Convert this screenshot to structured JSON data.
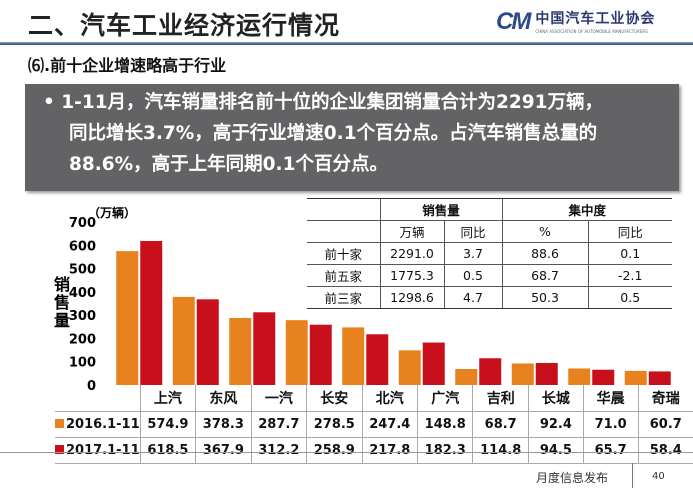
{
  "slide": {
    "title": "二、汽车工业经济运行情况",
    "logo": {
      "mark": "CM",
      "cn": "中国汽车工业协会",
      "en": "CHINA ASSOCIATION OF AUTOMOBILE MANUFACTURERS"
    },
    "subtitle": "⑹.前十企业增速略高于行业",
    "bullet_line1": "• 1-11月，汽车销量排名前十位的企业集团销量合计为2291万辆，",
    "bullet_line2": "同比增长3.7%，高于行业增速0.1个百分点。占汽车销售总量的",
    "bullet_line3": "88.6%，高于上年同期0.1个百分点。",
    "footer": "月度信息发布",
    "page": "40"
  },
  "summary_table": {
    "group_headers": [
      "销售量",
      "集中度"
    ],
    "sub_headers": [
      "万辆",
      "同比",
      "%",
      "同比"
    ],
    "rows": [
      {
        "label": "前十家",
        "values": [
          "2291.0",
          "3.7",
          "88.6",
          "0.1"
        ]
      },
      {
        "label": "前五家",
        "values": [
          "1775.3",
          "0.5",
          "68.7",
          "-2.1"
        ]
      },
      {
        "label": "前三家",
        "values": [
          "1298.6",
          "4.7",
          "50.3",
          "0.5"
        ]
      }
    ]
  },
  "chart_data": {
    "type": "bar",
    "unit_label": "（万辆）",
    "ylabel": "销售量",
    "ylim": [
      0,
      700
    ],
    "yticks": [
      "0",
      "100",
      "200",
      "300",
      "400",
      "500",
      "600",
      "700"
    ],
    "categories": [
      "上汽",
      "东风",
      "一汽",
      "长安",
      "北汽",
      "广汽",
      "吉利",
      "长城",
      "华晨",
      "奇瑞"
    ],
    "series": [
      {
        "name": "2016.1-11",
        "color": "#e8821e",
        "values": [
          574.9,
          378.3,
          287.7,
          278.5,
          247.4,
          148.8,
          68.7,
          92.4,
          71.0,
          60.7
        ]
      },
      {
        "name": "2017.1-11",
        "color": "#c8101c",
        "values": [
          618.5,
          367.9,
          312.2,
          258.9,
          217.8,
          182.3,
          114.8,
          94.5,
          65.7,
          58.4
        ]
      }
    ],
    "series_labels": [
      [
        "574.9",
        "378.3",
        "287.7",
        "278.5",
        "247.4",
        "148.8",
        "68.7",
        "92.4",
        "71.0",
        "60.7"
      ],
      [
        "618.5",
        "367.9",
        "312.2",
        "258.9",
        "217.8",
        "182.3",
        "114.8",
        "94.5",
        "65.7",
        "58.4"
      ]
    ],
    "grid": false,
    "legend": "data-table"
  }
}
